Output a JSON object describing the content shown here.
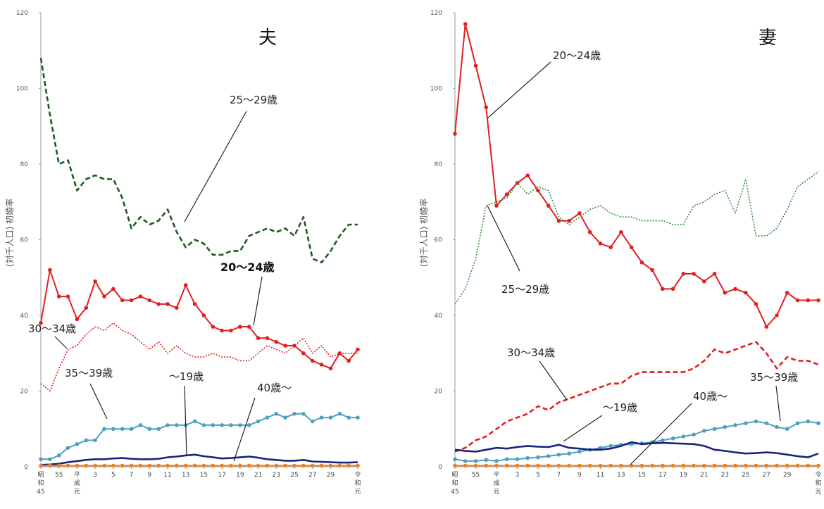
{
  "chart_data": [
    {
      "type": "line",
      "title": "夫",
      "ylabel": "(対千人口) 初婚率",
      "ylim": [
        0,
        120
      ],
      "yticks": [
        "0",
        "20",
        "40",
        "60",
        "80",
        "100",
        "120"
      ],
      "xticks": [
        "昭和45",
        "55",
        "平成元",
        "3",
        "5",
        "7",
        "9",
        "11",
        "13",
        "15",
        "17",
        "19",
        "21",
        "23",
        "25",
        "27",
        "29",
        "令和元"
      ],
      "x": [
        45,
        46,
        47,
        48,
        49,
        50,
        51,
        52,
        53,
        54,
        55,
        56,
        57,
        58,
        59,
        60,
        61,
        62,
        63,
        64,
        65,
        66,
        67,
        68,
        69,
        70,
        71,
        72,
        73,
        74,
        75,
        76,
        77,
        78,
        79,
        80
      ],
      "series": [
        {
          "name": "25～29歳",
          "color": "#1f5a1f",
          "style": "dashed",
          "values": [
            108,
            93,
            80,
            81,
            73,
            76,
            77,
            76,
            76,
            71,
            63,
            66,
            64,
            65,
            68,
            62,
            58,
            60,
            59,
            56,
            56,
            57,
            57,
            61,
            62,
            63,
            62,
            63,
            61,
            66,
            55,
            54,
            57,
            61,
            64,
            64
          ]
        },
        {
          "name": "20～24歳",
          "color": "#e02020",
          "style": "marker",
          "values": [
            38,
            52,
            45,
            45,
            39,
            42,
            49,
            45,
            47,
            44,
            44,
            45,
            44,
            43,
            43,
            42,
            48,
            43,
            40,
            37,
            36,
            36,
            37,
            37,
            34,
            34,
            33,
            32,
            32,
            30,
            28,
            27,
            26,
            30,
            28,
            31
          ]
        },
        {
          "name": "30～34歳",
          "color": "#e02020",
          "style": "dotted",
          "values": [
            22,
            20,
            26,
            31,
            32,
            35,
            37,
            36,
            38,
            36,
            35,
            33,
            31,
            33,
            30,
            32,
            30,
            29,
            29,
            30,
            29,
            29,
            28,
            28,
            30,
            32,
            31,
            30,
            32,
            34,
            30,
            32,
            29,
            30,
            30,
            30
          ]
        },
        {
          "name": "35～39歳",
          "color": "#4f9fc0",
          "style": "marker",
          "values": [
            2,
            2,
            3,
            5,
            6,
            7,
            7,
            10,
            10,
            10,
            10,
            11,
            10,
            10,
            11,
            11,
            11,
            12,
            11,
            11,
            11,
            11,
            11,
            11,
            12,
            13,
            14,
            13,
            14,
            14,
            12,
            13,
            13,
            14,
            13,
            13
          ]
        },
        {
          "name": "～19歳",
          "color": "#1a237e",
          "style": "solid",
          "values": [
            0.5,
            0.6,
            0.8,
            1.2,
            1.5,
            1.8,
            2,
            2,
            2.2,
            2.3,
            2.1,
            2,
            2,
            2.1,
            2.5,
            2.7,
            3,
            3.2,
            2.8,
            2.5,
            2.2,
            2.3,
            2.5,
            2.7,
            2.4,
            2,
            1.8,
            1.6,
            1.6,
            1.8,
            1.4,
            1.3,
            1.2,
            1.1,
            1.1,
            1.2
          ]
        },
        {
          "name": "40歳～",
          "color": "#f08020",
          "style": "marker",
          "values": [
            0.3,
            0.3,
            0.3,
            0.3,
            0.3,
            0.3,
            0.3,
            0.3,
            0.3,
            0.3,
            0.3,
            0.3,
            0.3,
            0.3,
            0.3,
            0.3,
            0.3,
            0.3,
            0.3,
            0.3,
            0.3,
            0.3,
            0.3,
            0.3,
            0.3,
            0.3,
            0.3,
            0.3,
            0.3,
            0.3,
            0.3,
            0.3,
            0.3,
            0.3,
            0.3,
            0.3
          ]
        }
      ]
    },
    {
      "type": "line",
      "title": "妻",
      "ylabel": "(対千人口) 初婚率",
      "ylim": [
        0,
        120
      ],
      "yticks": [
        "0",
        "20",
        "40",
        "60",
        "80",
        "100",
        "120"
      ],
      "xticks": [
        "昭和45",
        "55",
        "平成元",
        "3",
        "5",
        "7",
        "9",
        "11",
        "13",
        "15",
        "17",
        "19",
        "21",
        "23",
        "25",
        "27",
        "29",
        "令和元"
      ],
      "x": [
        45,
        46,
        47,
        48,
        49,
        50,
        51,
        52,
        53,
        54,
        55,
        56,
        57,
        58,
        59,
        60,
        61,
        62,
        63,
        64,
        65,
        66,
        67,
        68,
        69,
        70,
        71,
        72,
        73,
        74,
        75,
        76,
        77,
        78,
        79,
        80
      ],
      "series": [
        {
          "name": "20～24歳",
          "color": "#e02020",
          "style": "marker",
          "values": [
            88,
            117,
            106,
            95,
            69,
            72,
            75,
            77,
            73,
            69,
            65,
            65,
            67,
            62,
            59,
            58,
            62,
            58,
            54,
            52,
            47,
            47,
            51,
            51,
            49,
            51,
            46,
            47,
            46,
            43,
            37,
            40,
            46,
            44,
            44,
            44
          ]
        },
        {
          "name": "25～29歳",
          "color": "#3b8f3b",
          "style": "dotted",
          "values": [
            43,
            47,
            55,
            69,
            70,
            71,
            75,
            72,
            74,
            73,
            66,
            64,
            66,
            68,
            69,
            67,
            66,
            66,
            65,
            65,
            65,
            64,
            64,
            69,
            70,
            72,
            73,
            67,
            76,
            61,
            61,
            63,
            68,
            74,
            76,
            78
          ]
        },
        {
          "name": "30～34歳",
          "color": "#e02020",
          "style": "dashed",
          "values": [
            4,
            5,
            7,
            8,
            10,
            12,
            13,
            14,
            16,
            15,
            17,
            18,
            19,
            20,
            21,
            22,
            22,
            24,
            25,
            25,
            25,
            25,
            25,
            26,
            28,
            31,
            30,
            31,
            32,
            33,
            30,
            26,
            29,
            28,
            28,
            27
          ]
        },
        {
          "name": "35～39歳",
          "color": "#4f9fc0",
          "style": "marker",
          "values": [
            2,
            1.5,
            1.5,
            1.8,
            1.5,
            2,
            2,
            2.3,
            2.5,
            2.8,
            3.2,
            3.5,
            4,
            4.5,
            5,
            5.5,
            5.8,
            6,
            6.2,
            6.5,
            7,
            7.5,
            8,
            8.5,
            9.5,
            10,
            10.5,
            11,
            11.5,
            12,
            11.5,
            10.5,
            10,
            11.5,
            12,
            11.5
          ]
        },
        {
          "name": "～19歳",
          "color": "#1a237e",
          "style": "solid",
          "values": [
            4.5,
            4.2,
            4,
            4.5,
            5,
            4.8,
            5.2,
            5.5,
            5.3,
            5.2,
            5.8,
            5,
            4.8,
            4.5,
            4.5,
            4.8,
            5.5,
            6.5,
            6,
            6.2,
            6.3,
            6.2,
            6.1,
            6,
            5.5,
            4.5,
            4.2,
            3.8,
            3.5,
            3.6,
            3.8,
            3.6,
            3.2,
            2.8,
            2.5,
            3.5
          ]
        },
        {
          "name": "40歳～",
          "color": "#f08020",
          "style": "marker",
          "values": [
            0.3,
            0.3,
            0.3,
            0.3,
            0.3,
            0.3,
            0.3,
            0.3,
            0.3,
            0.3,
            0.3,
            0.3,
            0.3,
            0.3,
            0.3,
            0.3,
            0.3,
            0.3,
            0.3,
            0.3,
            0.3,
            0.3,
            0.3,
            0.3,
            0.3,
            0.3,
            0.3,
            0.3,
            0.3,
            0.3,
            0.3,
            0.3,
            0.3,
            0.3,
            0.3,
            0.3
          ]
        }
      ]
    }
  ]
}
